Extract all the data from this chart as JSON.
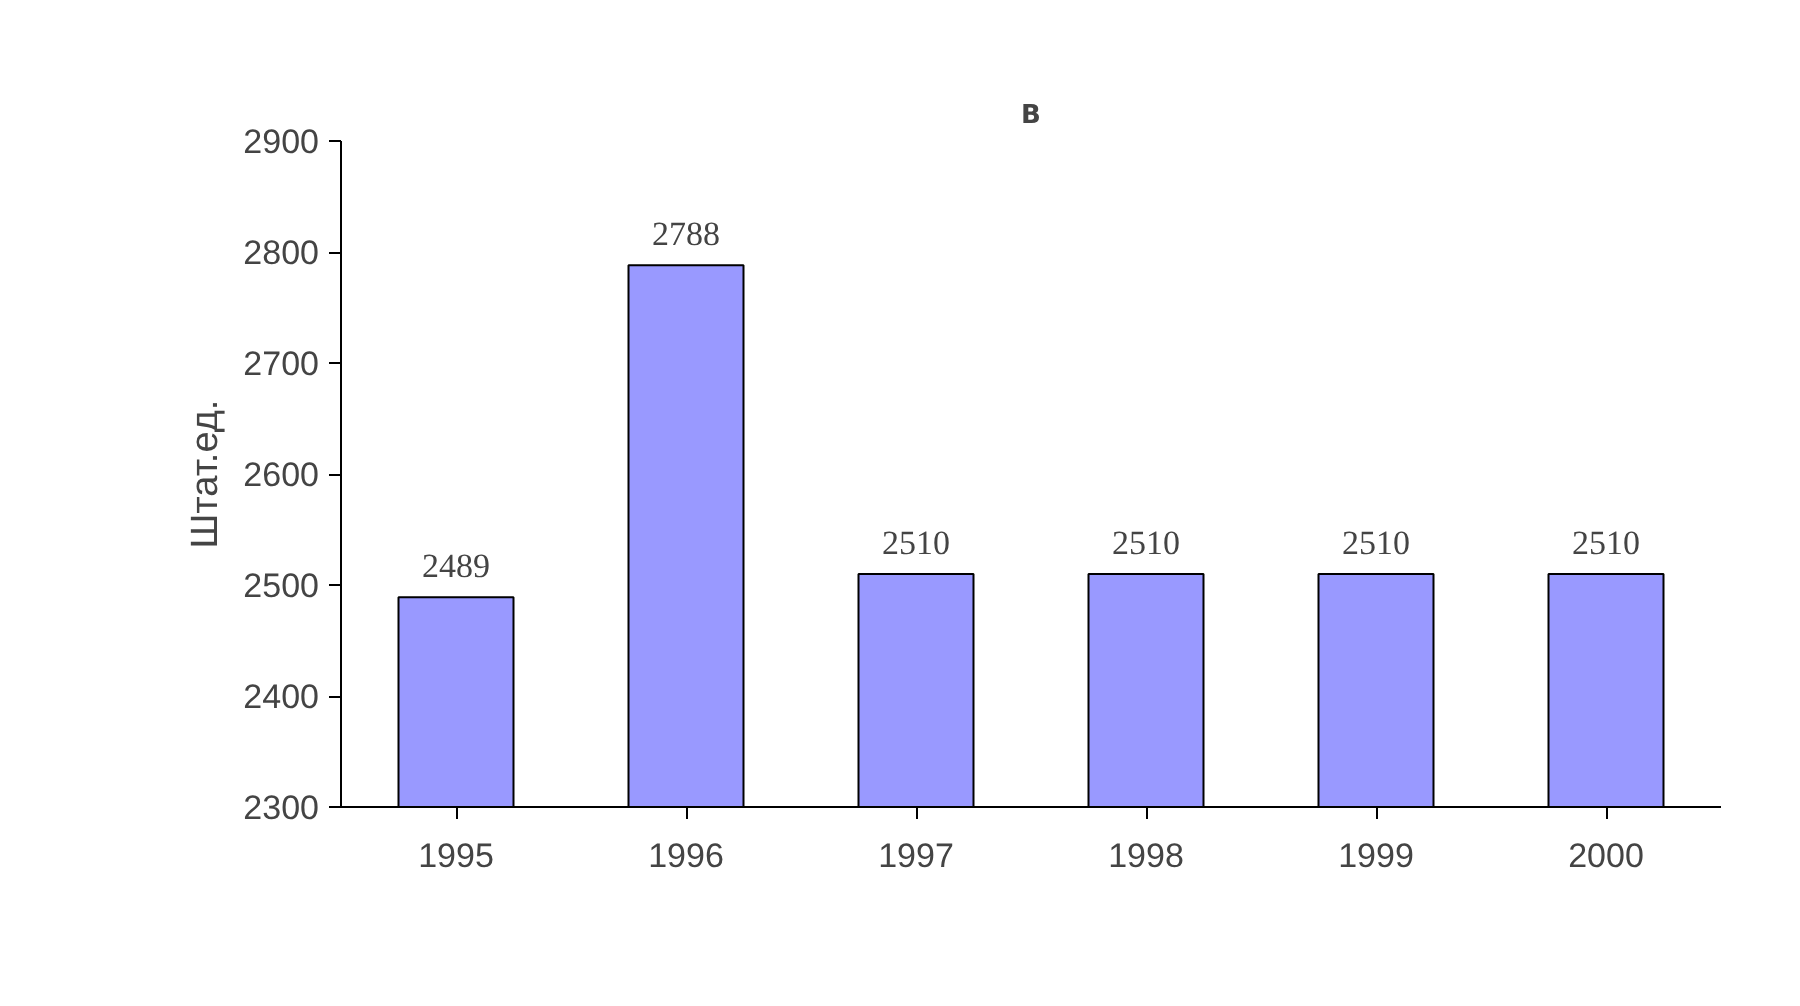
{
  "chart_data": {
    "type": "bar",
    "title": "В",
    "ylabel": "Штат.ед.",
    "categories": [
      "1995",
      "1996",
      "1997",
      "1998",
      "1999",
      "2000"
    ],
    "values": [
      2489,
      2788,
      2510,
      2510,
      2510,
      2510
    ],
    "color": "#9999ff",
    "ylim": [
      2300,
      2900
    ],
    "yticks": [
      2300,
      2400,
      2500,
      2600,
      2700,
      2800,
      2900
    ],
    "data_labels": true
  }
}
